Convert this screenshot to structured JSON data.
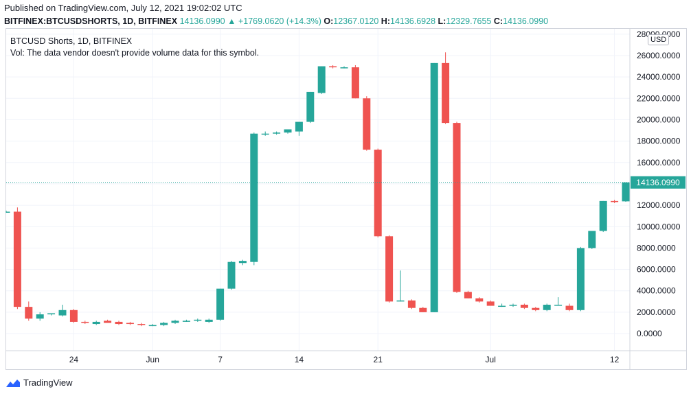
{
  "header": {
    "published": "Published on TradingView.com, July 12, 2021 19:02:02 UTC"
  },
  "legend": {
    "symbol": "BITFINEX:BTCUSDSHORTS, 1D, BITFINEX",
    "last": "14136.0990",
    "change": "▲ +1769.0620 (+14.3%)",
    "o_label": "O:",
    "o_value": "12367.0120",
    "h_label": "H:",
    "h_value": "14136.6928",
    "l_label": "L:",
    "l_value": "12329.7655",
    "c_label": "C:",
    "c_value": "14136.0990"
  },
  "pane": {
    "title": "BTCUSD Shorts, 1D, BITFINEX",
    "vol_note": "Vol: The data vendor doesn't provide volume data for this symbol.",
    "currency": "USD",
    "last_price_label": "14136.0990"
  },
  "brand": {
    "name": "TradingView"
  },
  "colors": {
    "up": "#26a69a",
    "down": "#ef5350",
    "grid": "#f0f3fa",
    "axis": "#131722"
  },
  "chart_data": {
    "type": "candlestick",
    "title": "BTCUSD Shorts, 1D, BITFINEX",
    "ylim": [
      -1600,
      28500
    ],
    "y_ticks": [
      0,
      2000,
      4000,
      6000,
      8000,
      10000,
      12000,
      14000,
      16000,
      18000,
      20000,
      22000,
      24000,
      26000,
      28000
    ],
    "y_tick_labels": [
      "0.0000",
      "2000.0000",
      "4000.0000",
      "6000.0000",
      "8000.0000",
      "10000.0000",
      "12000.0000",
      "14000.0000",
      "16000.0000",
      "18000.0000",
      "20000.0000",
      "22000.0000",
      "24000.0000",
      "26000.0000",
      "28000.0000"
    ],
    "x_ticks": [
      {
        "index": 6,
        "label": "24"
      },
      {
        "index": 13,
        "label": "Jun"
      },
      {
        "index": 19,
        "label": "7"
      },
      {
        "index": 26,
        "label": "14"
      },
      {
        "index": 33,
        "label": "21"
      },
      {
        "index": 43,
        "label": "Jul"
      },
      {
        "index": 54,
        "label": "12"
      }
    ],
    "last_price": 14136.099,
    "candles": [
      [
        11400,
        11500,
        11300,
        11400
      ],
      [
        11400,
        11800,
        2300,
        2500
      ],
      [
        2500,
        3000,
        1200,
        1400
      ],
      [
        1400,
        2000,
        1200,
        1800
      ],
      [
        1800,
        1900,
        1700,
        1900
      ],
      [
        1700,
        2700,
        1600,
        2200
      ],
      [
        2200,
        2300,
        1000,
        1100
      ],
      [
        1100,
        1200,
        900,
        1000
      ],
      [
        900,
        1200,
        800,
        1100
      ],
      [
        1200,
        1300,
        1000,
        1000
      ],
      [
        1100,
        1200,
        800,
        900
      ],
      [
        1000,
        1100,
        800,
        900
      ],
      [
        900,
        1000,
        700,
        800
      ],
      [
        800,
        900,
        700,
        800
      ],
      [
        800,
        1100,
        700,
        1000
      ],
      [
        1000,
        1300,
        900,
        1200
      ],
      [
        1200,
        1300,
        1100,
        1200
      ],
      [
        1200,
        1400,
        1100,
        1300
      ],
      [
        1100,
        1400,
        1000,
        1300
      ],
      [
        1300,
        4200,
        1200,
        4200
      ],
      [
        4200,
        6800,
        4100,
        6700
      ],
      [
        6600,
        6900,
        6400,
        6800
      ],
      [
        6700,
        18800,
        6400,
        18700
      ],
      [
        18700,
        18900,
        18500,
        18700
      ],
      [
        18700,
        18900,
        18600,
        18800
      ],
      [
        18800,
        19100,
        18700,
        19100
      ],
      [
        18900,
        19800,
        18500,
        19800
      ],
      [
        19800,
        22600,
        19700,
        22600
      ],
      [
        22500,
        25000,
        22400,
        25000
      ],
      [
        25000,
        25100,
        24800,
        24900
      ],
      [
        24900,
        25000,
        24800,
        24900
      ],
      [
        24900,
        25100,
        22000,
        22000
      ],
      [
        22000,
        22200,
        17100,
        17200
      ],
      [
        17200,
        17300,
        9000,
        9100
      ],
      [
        9100,
        9200,
        2900,
        3000
      ],
      [
        3000,
        5900,
        3000,
        3100
      ],
      [
        3100,
        3200,
        2300,
        2400
      ],
      [
        2400,
        2500,
        2000,
        2000
      ],
      [
        2000,
        25300,
        2000,
        25300
      ],
      [
        25300,
        26300,
        19600,
        19700
      ],
      [
        19700,
        19800,
        3800,
        3900
      ],
      [
        3900,
        4000,
        3300,
        3300
      ],
      [
        3300,
        3400,
        2900,
        3000
      ],
      [
        3000,
        3100,
        2600,
        2600
      ],
      [
        2600,
        2800,
        2500,
        2600
      ],
      [
        2600,
        2800,
        2500,
        2700
      ],
      [
        2700,
        2800,
        2300,
        2400
      ],
      [
        2400,
        2500,
        2100,
        2200
      ],
      [
        2200,
        2800,
        2100,
        2700
      ],
      [
        2700,
        3400,
        2600,
        2700
      ],
      [
        2600,
        2800,
        2100,
        2200
      ],
      [
        2200,
        8100,
        2100,
        8000
      ],
      [
        8000,
        9600,
        7900,
        9600
      ],
      [
        9600,
        12400,
        9500,
        12400
      ],
      [
        12400,
        12500,
        12200,
        12300
      ],
      [
        12367.012,
        14136.6928,
        12329.7655,
        14136.099
      ]
    ]
  }
}
